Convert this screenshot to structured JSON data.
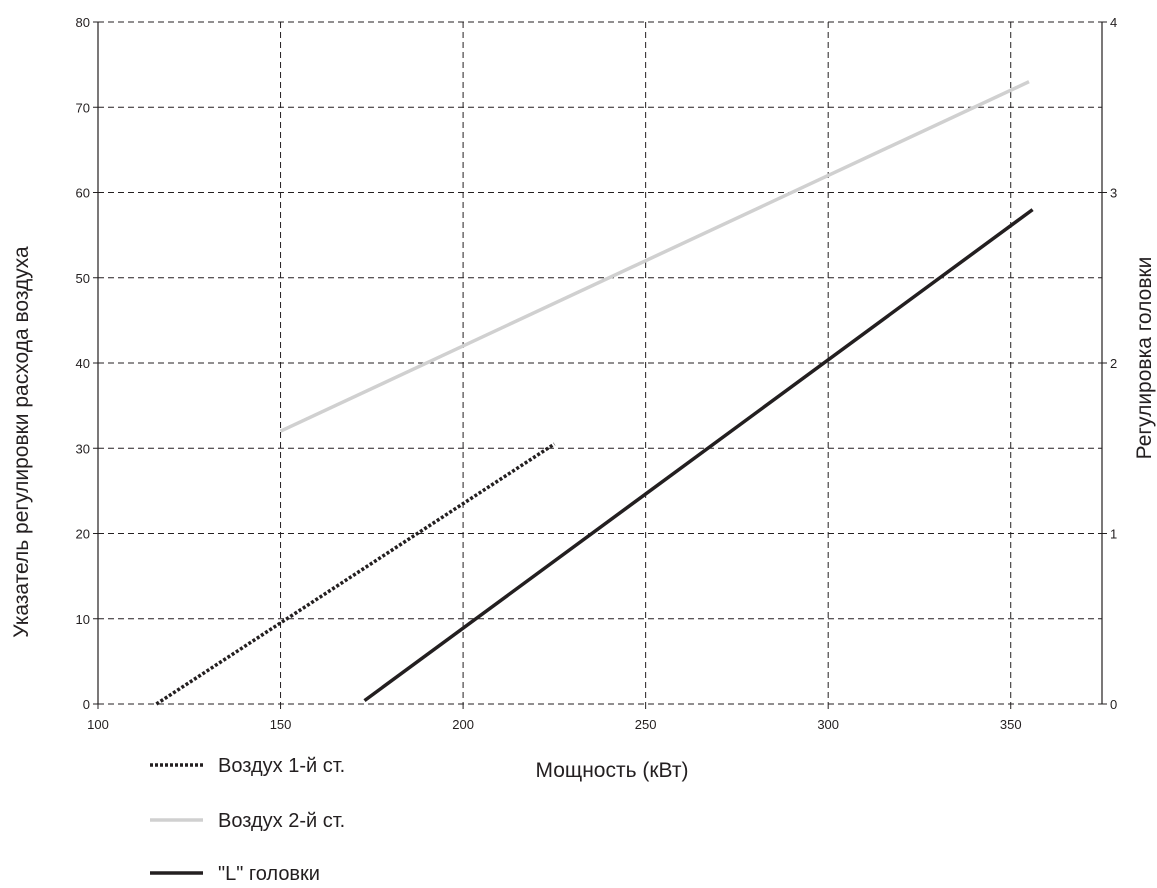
{
  "chart_data": {
    "type": "line",
    "title": "",
    "xlabel": "Мощность (кВт)",
    "ylabel": "Указатель регулировки расхода воздуха",
    "y2label": "Регулировка головки",
    "xlim": [
      100,
      375
    ],
    "ylim": [
      0,
      80
    ],
    "y2lim": [
      0,
      4
    ],
    "xticks": [
      "100",
      "150",
      "200",
      "250",
      "300",
      "350"
    ],
    "yticks": [
      "0",
      "10",
      "20",
      "30",
      "40",
      "50",
      "60",
      "70",
      "80"
    ],
    "y2ticks": [
      "0",
      "1",
      "2",
      "3",
      "4"
    ],
    "grid": true,
    "legend_position": "bottom-left",
    "series": [
      {
        "name": "Воздух 1-й ст.",
        "axis": "left",
        "style": "dotted",
        "color": "#231f20",
        "x": [
          116,
          225
        ],
        "y": [
          0,
          30.5
        ]
      },
      {
        "name": "Воздух 2-й ст.",
        "axis": "left",
        "style": "solid",
        "color": "#d0d0d0",
        "x": [
          150,
          355
        ],
        "y": [
          32,
          73
        ]
      },
      {
        "name": "\"L\" головки",
        "axis": "right",
        "style": "solid",
        "color": "#231f20",
        "x": [
          173,
          356
        ],
        "y": [
          0.02,
          2.9
        ]
      }
    ]
  }
}
